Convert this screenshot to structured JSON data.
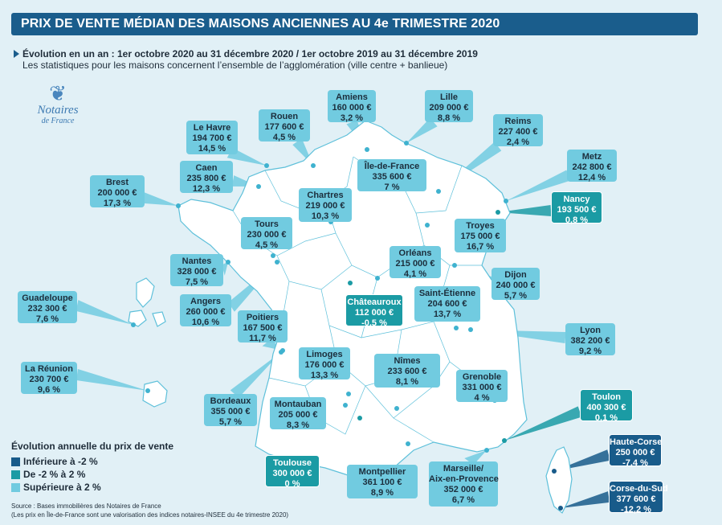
{
  "title": "PRIX DE VENTE MÉDIAN DES MAISONS ANCIENNES AU 4e TRIMESTRE 2020",
  "subtitle_line1": "Évolution en un an : 1er octobre 2020 au 31 décembre 2020 / 1er octobre 2019 au 31 décembre 2019",
  "subtitle_line2": "Les statistiques pour les maisons concernent l’ensemble de l’agglomération (ville centre + banlieue)",
  "logo": {
    "name": "Notaires",
    "sub": "de France",
    "icon": "notaires-logo-icon"
  },
  "colors": {
    "inferieure": "#185b8a",
    "moyenne": "#1b9ba4",
    "superieure": "#71cbe0",
    "map_fill": "#ffffff",
    "map_stroke": "#5ec0da",
    "title_bg": "#1a5d8c"
  },
  "legend": {
    "title": "Évolution annuelle du prix de vente",
    "items": [
      {
        "label": "Inférieure à -2 %",
        "color": "#185b8a"
      },
      {
        "label": "De -2 % à 2 %",
        "color": "#1b9ba4"
      },
      {
        "label": "Supérieure à 2 %",
        "color": "#71cbe0"
      }
    ]
  },
  "source_line1": "Source : Bases immobilières des Notaires de France",
  "source_line2": "(Les prix en Île-de-France sont une valorisation des indices notaires-INSEE du 4e trimestre 2020)",
  "cities": [
    {
      "name": "Amiens",
      "price": "160 000 €",
      "change": "3,2 %",
      "category": "sup"
    },
    {
      "name": "Lille",
      "price": "209 000 €",
      "change": "8,8 %",
      "category": "sup"
    },
    {
      "name": "Rouen",
      "price": "177 600 €",
      "change": "4,5 %",
      "category": "sup"
    },
    {
      "name": "Reims",
      "price": "227 400 €",
      "change": "2,4 %",
      "category": "sup"
    },
    {
      "name": "Le Havre",
      "price": "194 700 €",
      "change": "14,5 %",
      "category": "sup"
    },
    {
      "name": "Metz",
      "price": "242 800 €",
      "change": "12,4 %",
      "category": "sup"
    },
    {
      "name": "Caen",
      "price": "235 800 €",
      "change": "12,3 %",
      "category": "sup"
    },
    {
      "name": "Île-de-France",
      "price": "335 600 €",
      "change": "7 %",
      "category": "sup"
    },
    {
      "name": "Brest",
      "price": "200 000 €",
      "change": "17,3 %",
      "category": "sup"
    },
    {
      "name": "Chartres",
      "price": "219 000 €",
      "change": "10,3 %",
      "category": "sup"
    },
    {
      "name": "Nancy",
      "price": "193 500 €",
      "change": "0,8 %",
      "category": "mid"
    },
    {
      "name": "Tours",
      "price": "230 000 €",
      "change": "4,5 %",
      "category": "sup"
    },
    {
      "name": "Troyes",
      "price": "175 000 €",
      "change": "16,7 %",
      "category": "sup"
    },
    {
      "name": "Orléans",
      "price": "215 000 €",
      "change": "4,1 %",
      "category": "sup"
    },
    {
      "name": "Nantes",
      "price": "328 000 €",
      "change": "7,5 %",
      "category": "sup"
    },
    {
      "name": "Dijon",
      "price": "240 000 €",
      "change": "5,7 %",
      "category": "sup"
    },
    {
      "name": "Châteauroux",
      "price": "112 000 €",
      "change": "-0,5 %",
      "category": "mid"
    },
    {
      "name": "Saint-Étienne",
      "price": "204 600 €",
      "change": "13,7 %",
      "category": "sup"
    },
    {
      "name": "Guadeloupe",
      "price": "232 300 €",
      "change": "7,6 %",
      "category": "sup"
    },
    {
      "name": "Angers",
      "price": "260 000 €",
      "change": "10,6 %",
      "category": "sup"
    },
    {
      "name": "Poitiers",
      "price": "167 500 €",
      "change": "11,7 %",
      "category": "sup"
    },
    {
      "name": "Lyon",
      "price": "382 200 €",
      "change": "9,2 %",
      "category": "sup"
    },
    {
      "name": "Limoges",
      "price": "176 000 €",
      "change": "13,3 %",
      "category": "sup"
    },
    {
      "name": "Nîmes",
      "price": "233 600 €",
      "change": "8,1 %",
      "category": "sup"
    },
    {
      "name": "La Réunion",
      "price": "230 700 €",
      "change": "9,6 %",
      "category": "sup"
    },
    {
      "name": "Grenoble",
      "price": "331 000 €",
      "change": "4 %",
      "category": "sup"
    },
    {
      "name": "Toulon",
      "price": "400 300 €",
      "change": "0,1 %",
      "category": "mid"
    },
    {
      "name": "Bordeaux",
      "price": "355 000 €",
      "change": "5,7 %",
      "category": "sup"
    },
    {
      "name": "Montauban",
      "price": "205 000 €",
      "change": "8,3 %",
      "category": "sup"
    },
    {
      "name": "Haute-Corse",
      "price": "250 000 €",
      "change": "-7,4 %",
      "category": "inf"
    },
    {
      "name": "Toulouse",
      "price": "300 000 €",
      "change": "0 %",
      "category": "mid"
    },
    {
      "name": "Montpellier",
      "price": "361 100 €",
      "change": "8,9 %",
      "category": "sup"
    },
    {
      "name": "Marseille/ Aix-en-Provence",
      "price": "352 000 €",
      "change": "6,7 %",
      "category": "sup"
    },
    {
      "name": "Corse-du-Sud",
      "price": "377 600 €",
      "change": "-12,2 %",
      "category": "inf"
    }
  ]
}
